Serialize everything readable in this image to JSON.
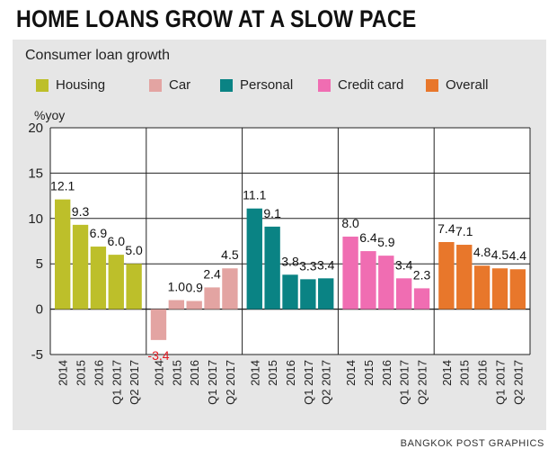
{
  "headline": "HOME LOANS GROW AT A SLOW PACE",
  "source": "BANGKOK POST GRAPHICS",
  "chart_data": {
    "type": "bar",
    "title": "Consumer loan growth",
    "ylabel": "%yoy",
    "ylim": [
      -5,
      20
    ],
    "yticks": [
      20,
      15,
      10,
      5,
      0,
      -5
    ],
    "grid": true,
    "legend_position": "top",
    "categories": [
      "2014",
      "2015",
      "2016",
      "Q1 2017",
      "Q2 2017"
    ],
    "series": [
      {
        "name": "Housing",
        "color": "#bdbf2a",
        "values": [
          12.1,
          9.3,
          6.9,
          6.0,
          5.0
        ]
      },
      {
        "name": "Car",
        "color": "#e3a4a2",
        "values": [
          -3.4,
          1.0,
          0.9,
          2.4,
          4.5
        ]
      },
      {
        "name": "Personal",
        "color": "#0a8384",
        "values": [
          11.1,
          9.1,
          3.8,
          3.3,
          3.4
        ]
      },
      {
        "name": "Credit card",
        "color": "#f06db2",
        "values": [
          8.0,
          6.4,
          5.9,
          3.4,
          2.3
        ]
      },
      {
        "name": "Overall",
        "color": "#e8772b",
        "values": [
          7.4,
          7.1,
          4.8,
          4.5,
          4.4
        ]
      }
    ],
    "negative_label_color": "#e31b23"
  }
}
